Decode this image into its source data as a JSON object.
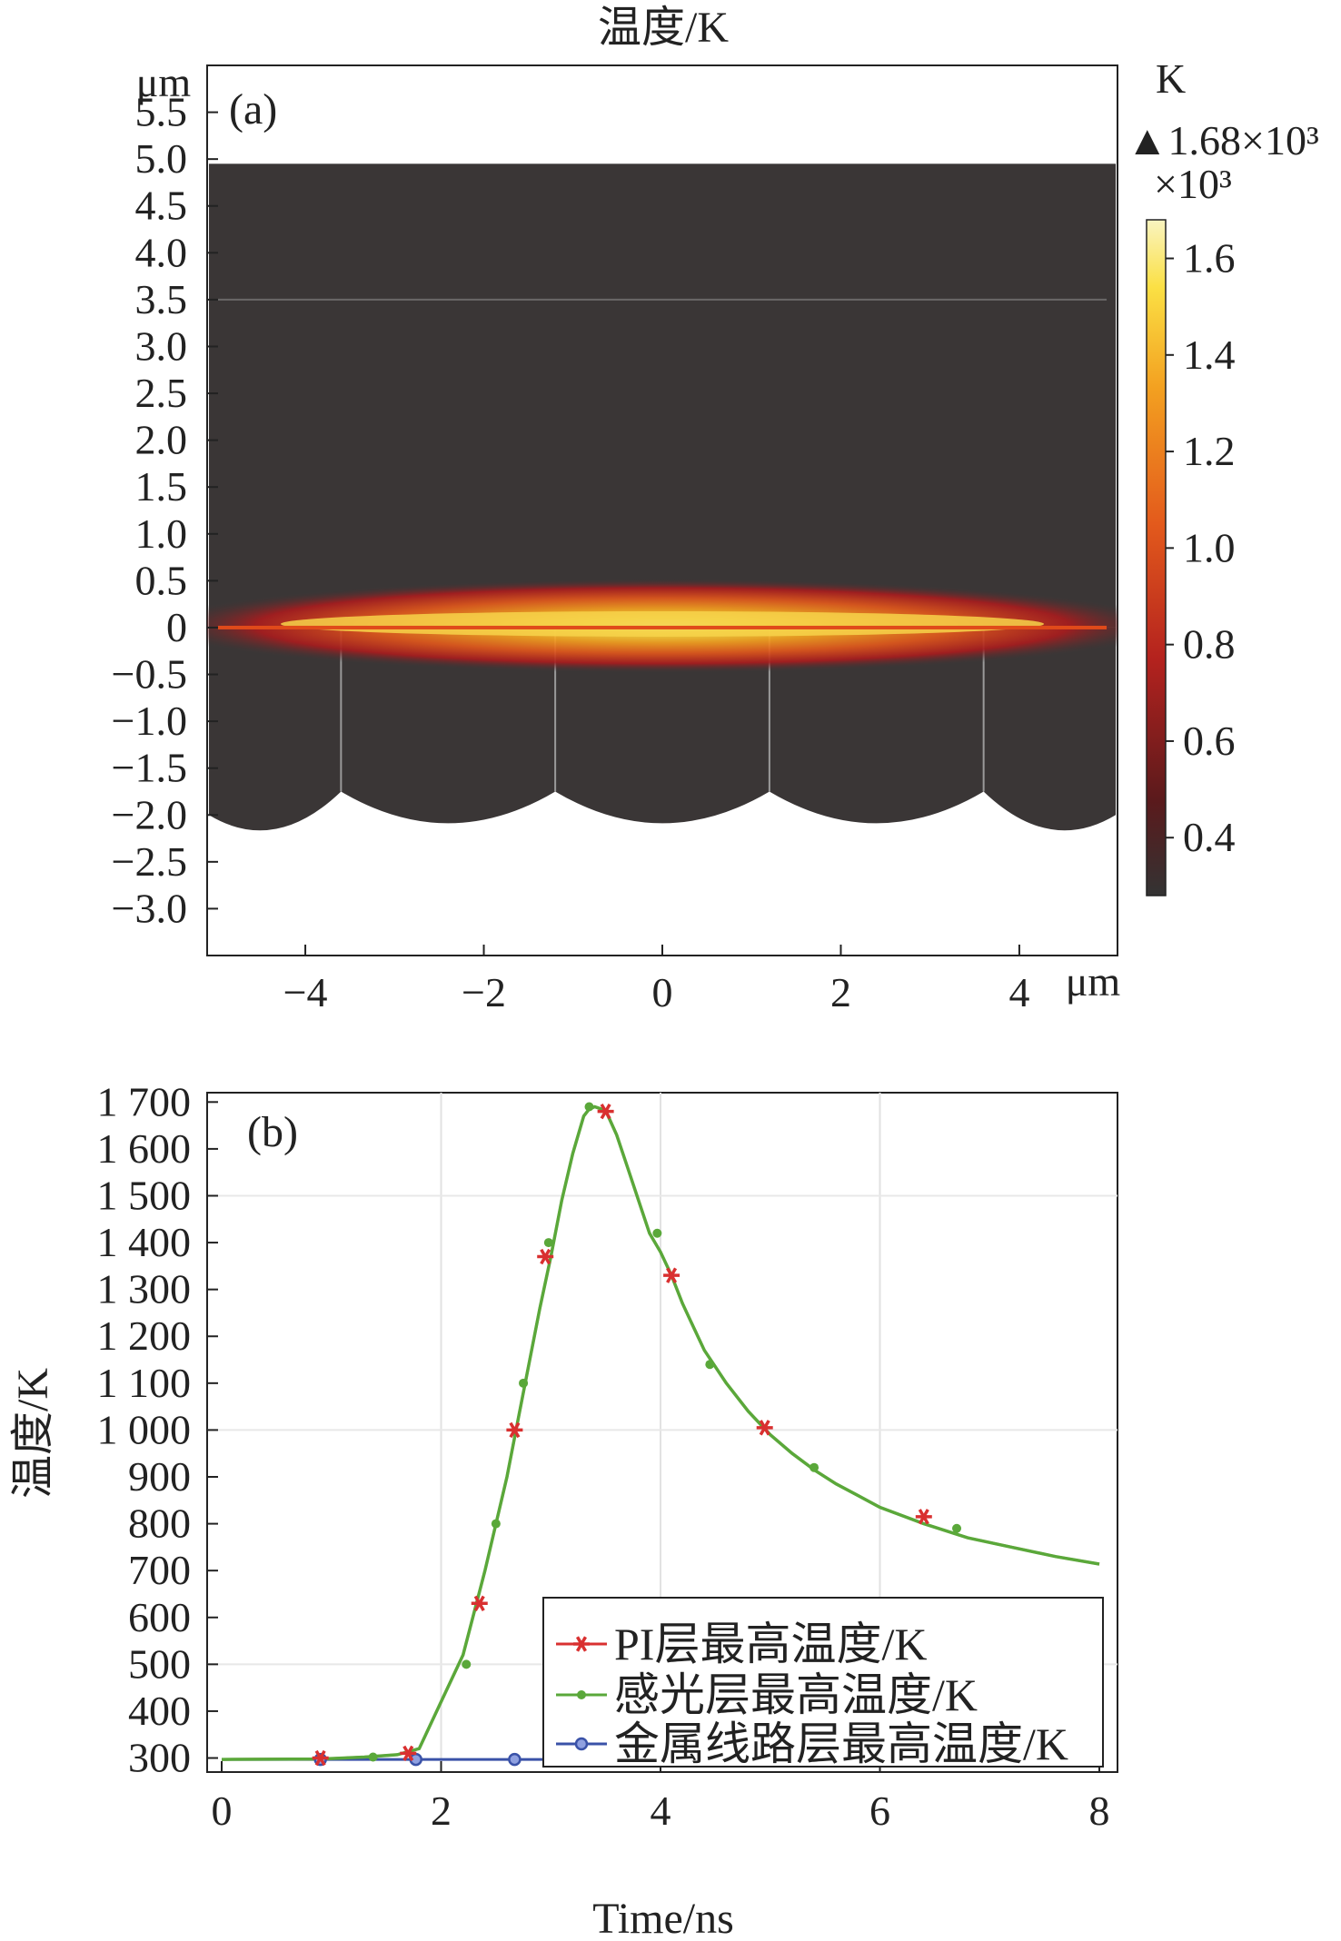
{
  "panel_a": {
    "title": "温度/K",
    "label": "(a)",
    "x_unit": "μm",
    "y_unit": "μm",
    "x_ticks": [
      "−4",
      "−2",
      "0",
      "2",
      "4"
    ],
    "y_ticks": [
      "5.5",
      "5.0",
      "4.5",
      "4.0",
      "3.5",
      "3.0",
      "2.5",
      "2.0",
      "1.5",
      "1.0",
      "0.5",
      "0",
      "−0.5",
      "−1.0",
      "−1.5",
      "−2.0",
      "−2.5",
      "−3.0"
    ],
    "colorbar": {
      "unit": "K",
      "max_label": "▲1.68×10³",
      "scale_label": "×10³",
      "ticks": [
        "1.6",
        "1.4",
        "1.2",
        "1.0",
        "0.8",
        "0.6",
        "0.4"
      ]
    },
    "background_color": "#3a3636",
    "hot_colors": [
      "#f9f4a0",
      "#fbe044",
      "#f3a020",
      "#e0581c",
      "#a71c1e",
      "#3a3636"
    ]
  },
  "chart_data": [
    {
      "type": "heatmap",
      "panel": "a",
      "title": "温度/K",
      "xlabel": "μm",
      "ylabel": "μm",
      "xlim": [
        -5.1,
        5.1
      ],
      "ylim": [
        -3.5,
        6.0
      ],
      "colorbar_range": [
        0.28,
        1.68
      ],
      "colorbar_max": 1.68,
      "hotspot_center": [
        0,
        0
      ],
      "interfaces_y": [
        3.5,
        0
      ],
      "domain_y": [
        -2.0,
        4.95
      ],
      "vertical_boundaries_x": [
        -3.6,
        -1.2,
        1.2,
        3.6
      ]
    },
    {
      "type": "line",
      "panel": "b",
      "label": "(b)",
      "xlabel": "Time/ns",
      "ylabel": "温度/K",
      "xlim": [
        0,
        8
      ],
      "ylim": [
        270,
        1720
      ],
      "x_ticks": [
        "0",
        "2",
        "4",
        "6",
        "8"
      ],
      "y_ticks": [
        "300",
        "400",
        "500",
        "600",
        "700",
        "800",
        "900",
        "1 000",
        "1 100",
        "1 200",
        "1 300",
        "1 400",
        "1 500",
        "1 600",
        "1 700"
      ],
      "grid": true,
      "legend_position": "bottom-right",
      "series": [
        {
          "name": "PI层最高温度/K",
          "color": "#d93030",
          "marker": "star",
          "x": [
            0.9,
            1.7,
            2.35,
            2.67,
            2.95,
            3.5,
            4.1,
            4.95,
            6.4
          ],
          "y": [
            300,
            310,
            630,
            1000,
            1370,
            1680,
            1330,
            1005,
            815
          ]
        },
        {
          "name": "感光层最高温度/K",
          "color": "#5aa83a",
          "marker": "dot",
          "curve_x": [
            0,
            0.9,
            1.3,
            1.6,
            1.8,
            2.0,
            2.2,
            2.4,
            2.5,
            2.6,
            2.7,
            2.8,
            2.9,
            3.0,
            3.1,
            3.2,
            3.3,
            3.35,
            3.4,
            3.5,
            3.6,
            3.7,
            3.8,
            3.9,
            4.0,
            4.1,
            4.2,
            4.3,
            4.4,
            4.6,
            4.8,
            5.0,
            5.2,
            5.4,
            5.6,
            5.8,
            6.0,
            6.4,
            6.8,
            7.2,
            7.6,
            8.0
          ],
          "curve_y": [
            297,
            298,
            302,
            307,
            320,
            420,
            520,
            700,
            800,
            900,
            1020,
            1140,
            1260,
            1370,
            1490,
            1590,
            1670,
            1685,
            1690,
            1682,
            1630,
            1560,
            1490,
            1420,
            1380,
            1330,
            1270,
            1220,
            1170,
            1100,
            1040,
            990,
            950,
            915,
            885,
            860,
            835,
            800,
            770,
            750,
            730,
            714
          ],
          "marker_x": [
            1.38,
            2.23,
            2.5,
            2.75,
            2.98,
            3.35,
            3.97,
            4.45,
            5.4,
            6.7
          ],
          "marker_y": [
            302,
            500,
            800,
            1100,
            1400,
            1690,
            1420,
            1140,
            920,
            790
          ]
        },
        {
          "name": "金属线路层最高温度/K",
          "color": "#3a52a8",
          "marker": "circle",
          "x": [
            0.9,
            1.77,
            2.67,
            3.56,
            4.45,
            5.34,
            6.23,
            7.12
          ],
          "y": [
            297,
            297,
            297,
            297,
            297,
            297,
            297,
            297
          ]
        }
      ]
    }
  ]
}
